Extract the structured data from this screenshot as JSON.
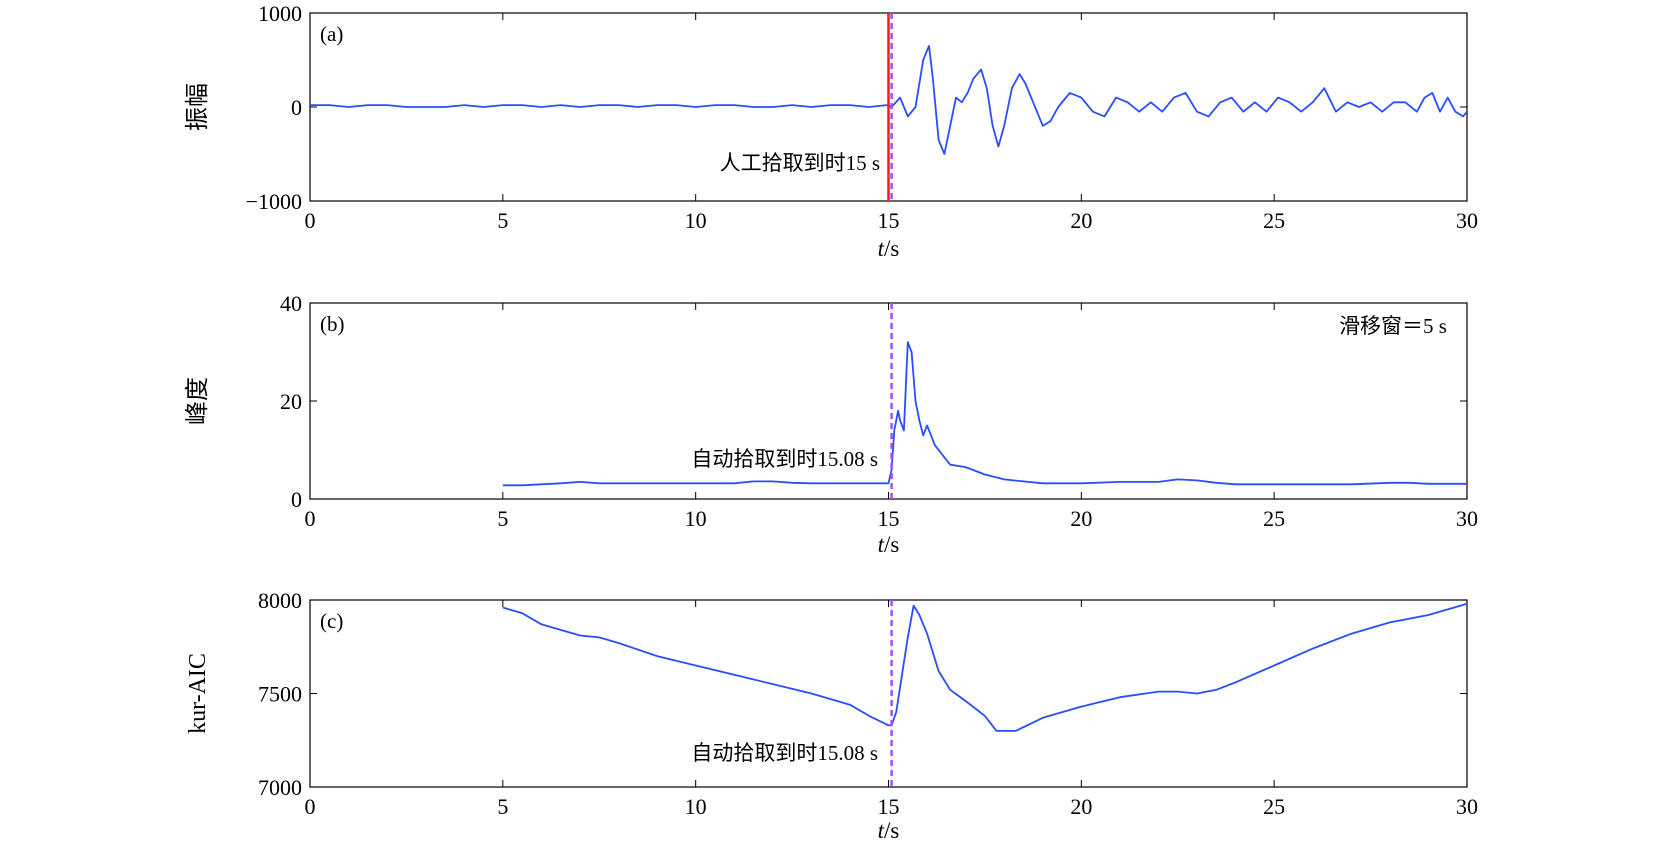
{
  "chart_data": [
    {
      "type": "line",
      "panel_label": "(a)",
      "ylabel": "振幅",
      "xlabel": {
        "italic": "t",
        "rest": "/s"
      },
      "xlim": [
        0,
        30
      ],
      "ylim": [
        -1000,
        1000
      ],
      "xticks": [
        0,
        5,
        10,
        15,
        20,
        25,
        30
      ],
      "yticks": [
        -1000,
        0,
        1000
      ],
      "ytick_labels": [
        "−1000",
        "0",
        "1000"
      ],
      "annotation": "人工拾取到时15 s",
      "manual_pick": 15,
      "auto_pick": 15.08,
      "series": [
        {
          "color": "#2b4cff",
          "x": [
            0,
            0.5,
            1,
            1.5,
            2,
            2.5,
            3,
            3.5,
            4,
            4.5,
            5,
            5.5,
            6,
            6.5,
            7,
            7.5,
            8,
            8.5,
            9,
            9.5,
            10,
            10.5,
            11,
            11.5,
            12,
            12.5,
            13,
            13.5,
            14,
            14.5,
            14.95,
            15.08,
            15.3,
            15.5,
            15.7,
            15.9,
            16.05,
            16.15,
            16.3,
            16.45,
            16.6,
            16.75,
            16.9,
            17.05,
            17.2,
            17.4,
            17.55,
            17.7,
            17.85,
            18.0,
            18.2,
            18.4,
            18.55,
            18.7,
            18.85,
            19.0,
            19.2,
            19.4,
            19.7,
            20.0,
            20.3,
            20.6,
            20.9,
            21.2,
            21.5,
            21.8,
            22.1,
            22.4,
            22.7,
            23.0,
            23.3,
            23.6,
            23.9,
            24.2,
            24.5,
            24.8,
            25.1,
            25.4,
            25.7,
            26.0,
            26.3,
            26.6,
            26.9,
            27.2,
            27.5,
            27.8,
            28.1,
            28.4,
            28.7,
            28.9,
            29.1,
            29.3,
            29.5,
            29.7,
            29.9,
            30.0
          ],
          "values": [
            20,
            20,
            0,
            20,
            20,
            0,
            0,
            0,
            20,
            0,
            20,
            20,
            0,
            20,
            0,
            20,
            20,
            0,
            20,
            20,
            0,
            20,
            20,
            0,
            0,
            20,
            0,
            20,
            20,
            0,
            20,
            0,
            100,
            -100,
            0,
            500,
            650,
            300,
            -350,
            -500,
            -200,
            100,
            50,
            150,
            300,
            400,
            200,
            -200,
            -420,
            -200,
            200,
            350,
            250,
            100,
            -50,
            -200,
            -150,
            0,
            150,
            100,
            -50,
            -100,
            100,
            50,
            -50,
            50,
            -50,
            100,
            150,
            -50,
            -100,
            50,
            100,
            -50,
            50,
            -50,
            100,
            50,
            -50,
            50,
            200,
            -50,
            50,
            0,
            50,
            -50,
            50,
            50,
            -50,
            100,
            150,
            -50,
            100,
            -50,
            -100,
            -50
          ]
        }
      ]
    },
    {
      "type": "line",
      "panel_label": "(b)",
      "ylabel": "峰度",
      "xlabel": {
        "italic": "t",
        "rest": "/s"
      },
      "xlim": [
        0,
        30
      ],
      "ylim": [
        0,
        40
      ],
      "xticks": [
        0,
        5,
        10,
        15,
        20,
        25,
        30
      ],
      "yticks": [
        0,
        20,
        40
      ],
      "ytick_labels": [
        "0",
        "20",
        "40"
      ],
      "annotation": "自动拾取到时15.08 s",
      "window_note": "滑移窗＝5 s",
      "auto_pick": 15.08,
      "series": [
        {
          "color": "#2b4cff",
          "x": [
            5,
            5.5,
            6,
            6.5,
            7,
            7.5,
            8,
            9,
            10,
            11,
            11.5,
            12,
            12.5,
            13,
            14,
            15,
            15.08,
            15.15,
            15.25,
            15.3,
            15.4,
            15.5,
            15.6,
            15.7,
            15.8,
            15.9,
            16.0,
            16.2,
            16.4,
            16.6,
            17.0,
            17.5,
            18.0,
            18.5,
            19,
            20,
            21,
            22,
            22.5,
            23,
            23.5,
            24,
            25,
            26,
            27,
            28,
            28.5,
            29,
            30
          ],
          "values": [
            2.8,
            2.8,
            3,
            3.2,
            3.5,
            3.2,
            3.2,
            3.2,
            3.2,
            3.2,
            3.6,
            3.6,
            3.3,
            3.2,
            3.2,
            3.2,
            6,
            14,
            18,
            16,
            14,
            32,
            30,
            20,
            16,
            13,
            15,
            11,
            9,
            7,
            6.5,
            5,
            4,
            3.6,
            3.2,
            3.2,
            3.5,
            3.5,
            4,
            3.8,
            3.3,
            3,
            3,
            3,
            3,
            3.3,
            3.3,
            3.1,
            3.1
          ]
        }
      ]
    },
    {
      "type": "line",
      "panel_label": "(c)",
      "ylabel": "kur-AIC",
      "xlabel": {
        "italic": "t",
        "rest": "/s"
      },
      "xlim": [
        0,
        30
      ],
      "ylim": [
        7000,
        8000
      ],
      "xticks": [
        0,
        5,
        10,
        15,
        20,
        25,
        30
      ],
      "yticks": [
        7000,
        7500,
        8000
      ],
      "ytick_labels": [
        "7000",
        "7500",
        "8000"
      ],
      "annotation": "自动拾取到时15.08 s",
      "auto_pick": 15.08,
      "series": [
        {
          "color": "#2b4cff",
          "x": [
            5,
            5.5,
            6,
            6.5,
            7,
            7.5,
            8,
            9,
            10,
            11,
            12,
            13,
            14,
            14.5,
            15,
            15.08,
            15.2,
            15.35,
            15.5,
            15.65,
            15.8,
            16.0,
            16.3,
            16.6,
            17.0,
            17.5,
            17.8,
            18.3,
            19,
            20,
            21,
            22,
            22.5,
            23,
            23.5,
            24,
            25,
            26,
            27,
            28,
            29,
            30
          ],
          "values": [
            7960,
            7930,
            7870,
            7840,
            7810,
            7800,
            7770,
            7700,
            7650,
            7600,
            7550,
            7500,
            7440,
            7380,
            7330,
            7330,
            7400,
            7600,
            7800,
            7970,
            7920,
            7820,
            7620,
            7520,
            7460,
            7380,
            7300,
            7300,
            7370,
            7430,
            7480,
            7510,
            7510,
            7500,
            7520,
            7560,
            7650,
            7740,
            7820,
            7880,
            7920,
            7980
          ]
        }
      ]
    }
  ]
}
